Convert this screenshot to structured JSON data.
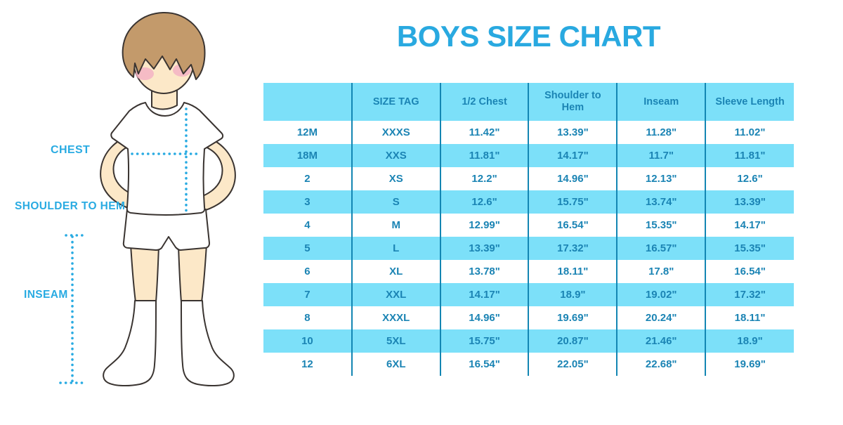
{
  "title": "BOYS SIZE CHART",
  "illustration": {
    "labels": {
      "chest": "CHEST",
      "shoulder_to_hem": "SHOULDER TO HEM",
      "inseam": "INSEAM"
    }
  },
  "chart_data": {
    "type": "table",
    "title": "BOYS SIZE CHART",
    "columns": [
      "",
      "SIZE TAG",
      "1/2 Chest",
      "Shoulder to Hem",
      "Inseam",
      "Sleeve Length"
    ],
    "rows": [
      [
        "12M",
        "XXXS",
        "11.42\"",
        "13.39\"",
        "11.28\"",
        "11.02\""
      ],
      [
        "18M",
        "XXS",
        "11.81\"",
        "14.17\"",
        "11.7\"",
        "11.81\""
      ],
      [
        "2",
        "XS",
        "12.2\"",
        "14.96\"",
        "12.13\"",
        "12.6\""
      ],
      [
        "3",
        "S",
        "12.6\"",
        "15.75\"",
        "13.74\"",
        "13.39\""
      ],
      [
        "4",
        "M",
        "12.99\"",
        "16.54\"",
        "15.35\"",
        "14.17\""
      ],
      [
        "5",
        "L",
        "13.39\"",
        "17.32\"",
        "16.57\"",
        "15.35\""
      ],
      [
        "6",
        "XL",
        "13.78\"",
        "18.11\"",
        "17.8\"",
        "16.54\""
      ],
      [
        "7",
        "XXL",
        "14.17\"",
        "18.9\"",
        "19.02\"",
        "17.32\""
      ],
      [
        "8",
        "XXXL",
        "14.96\"",
        "19.69\"",
        "20.24\"",
        "18.11\""
      ],
      [
        "10",
        "5XL",
        "15.75\"",
        "20.87\"",
        "21.46\"",
        "18.9\""
      ],
      [
        "12",
        "6XL",
        "16.54\"",
        "22.05\"",
        "22.68\"",
        "19.69\""
      ]
    ]
  },
  "colors": {
    "title_blue": "#29A9E0",
    "table_fill": "#7CE0F9",
    "table_text": "#1B84B4",
    "divider": "#1386B3",
    "label_blue": "#29ABE2",
    "skin": "#FCE8C8",
    "hair": "#C39A6B",
    "blush": "#F2AFC4"
  }
}
